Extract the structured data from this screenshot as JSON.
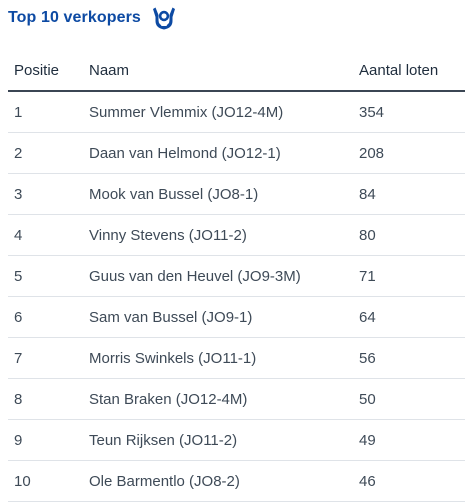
{
  "header": {
    "title": "Top 10 verkopers",
    "icon": "trophy-hand-icon"
  },
  "colors": {
    "title": "#0d4aa3",
    "text": "#1f2d3d",
    "cell_text": "#3e4a57",
    "header_rule": "#3b4654",
    "row_rule": "#dfe3e8"
  },
  "table": {
    "columns": [
      "Positie",
      "Naam",
      "Aantal loten"
    ],
    "rows": [
      {
        "positie": "1",
        "naam": "Summer Vlemmix (JO12-4M)",
        "loten": "354"
      },
      {
        "positie": "2",
        "naam": "Daan van Helmond (JO12-1)",
        "loten": "208"
      },
      {
        "positie": "3",
        "naam": "Mook van Bussel (JO8-1)",
        "loten": "84"
      },
      {
        "positie": "4",
        "naam": "Vinny Stevens (JO11-2)",
        "loten": "80"
      },
      {
        "positie": "5",
        "naam": "Guus van den Heuvel (JO9-3M)",
        "loten": "71"
      },
      {
        "positie": "6",
        "naam": "Sam van Bussel (JO9-1)",
        "loten": "64"
      },
      {
        "positie": "7",
        "naam": "Morris Swinkels (JO11-1)",
        "loten": "56"
      },
      {
        "positie": "8",
        "naam": "Stan Braken (JO12-4M)",
        "loten": "50"
      },
      {
        "positie": "9",
        "naam": "Teun Rijksen (JO11-2)",
        "loten": "49"
      },
      {
        "positie": "10",
        "naam": "Ole Barmentlo (JO8-2)",
        "loten": "46"
      }
    ]
  }
}
